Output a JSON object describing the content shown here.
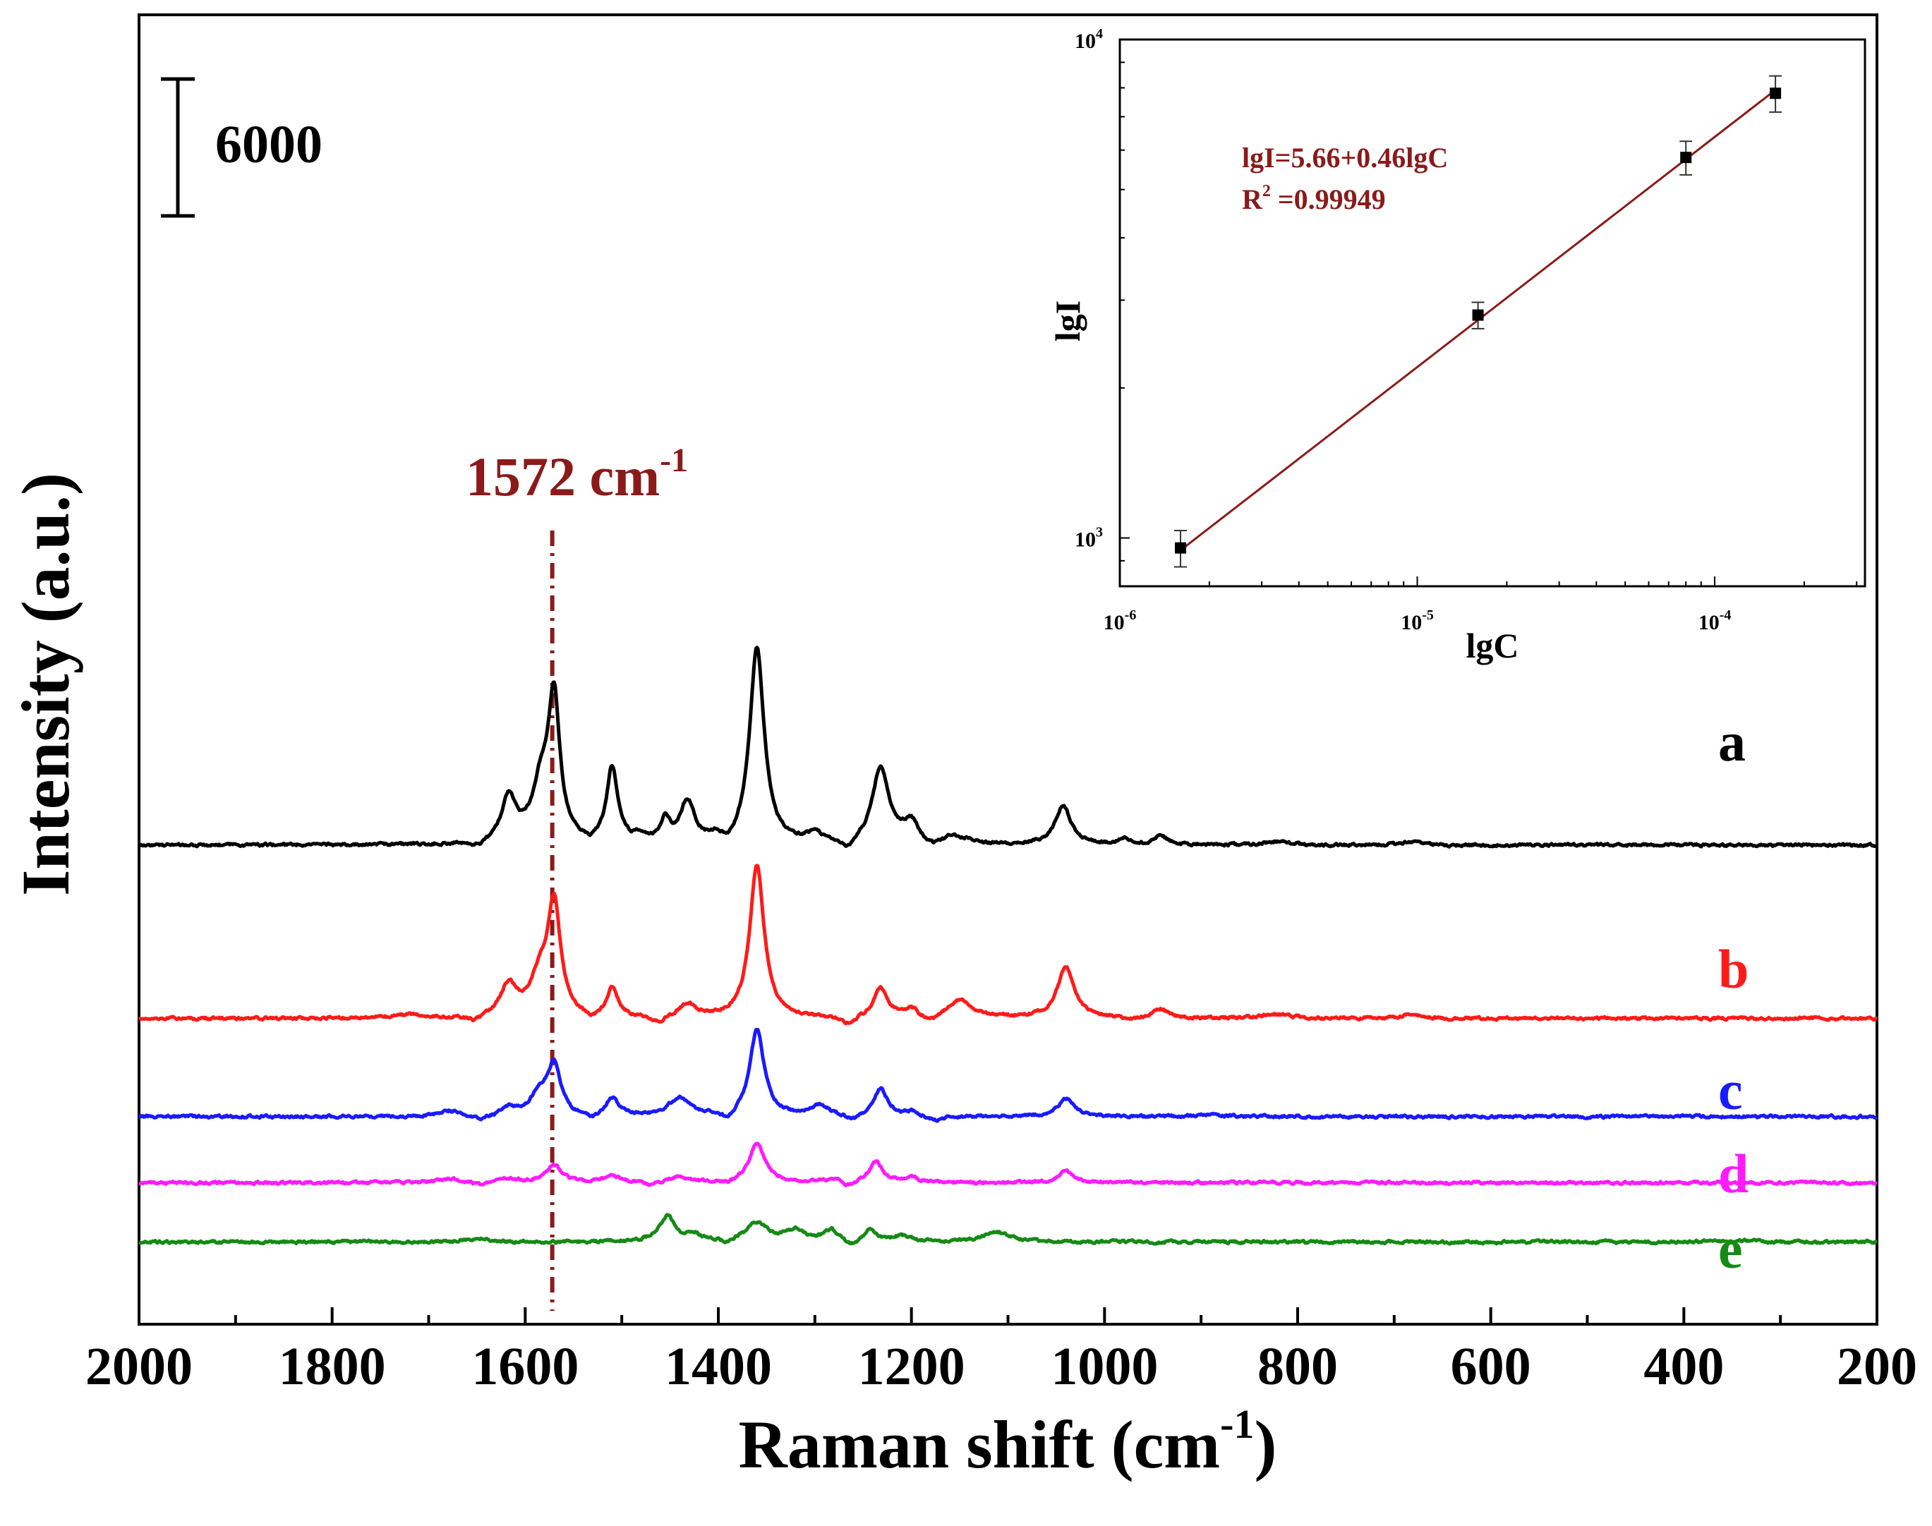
{
  "chart_data": [
    {
      "type": "line",
      "xlabel": "Raman shift (cm",
      "xlabel_sup": "-1",
      "xlabel_close": ")",
      "ylabel": "Intensity (a.u.)",
      "xlim": [
        2000,
        200
      ],
      "xticks": [
        2000,
        1800,
        1600,
        1400,
        1200,
        1000,
        800,
        600,
        400,
        200
      ],
      "xtick_labels": [
        "2000",
        "1800",
        "1600",
        "1400",
        "1200",
        "1000",
        "800",
        "600",
        "400",
        "200"
      ],
      "yaxis_ticks": false,
      "scale_bar_label": "6000",
      "scale_bar_value": 6000,
      "marker_line": {
        "x": 1572,
        "label": "1572 cm",
        "label_sup": "-1",
        "color": "#8b1a1a"
      },
      "peak_positions": [
        1617,
        1572,
        1508,
        1453,
        1432,
        1359,
        1300,
        1232,
        1200,
        1158,
        1040,
        980,
        940
      ],
      "series": [
        {
          "name": "a",
          "color": "#000000",
          "offset": 21000,
          "peaks": [
            [
              1617,
              2000,
              9
            ],
            [
              1583,
              2500,
              12
            ],
            [
              1570,
              5900,
              7
            ],
            [
              1510,
              3300,
              7
            ],
            [
              1482,
              250,
              6
            ],
            [
              1455,
              1000,
              6
            ],
            [
              1432,
              1800,
              9
            ],
            [
              1402,
              200,
              6
            ],
            [
              1360,
              8600,
              9
            ],
            [
              1300,
              400,
              10
            ],
            [
              1232,
              3300,
              11
            ],
            [
              1200,
              900,
              10
            ],
            [
              1158,
              350,
              8
            ],
            [
              1140,
              200,
              8
            ],
            [
              1043,
              1700,
              10
            ],
            [
              980,
              250,
              6
            ],
            [
              942,
              400,
              8
            ],
            [
              822,
              150,
              12
            ],
            [
              682,
              150,
              10
            ]
          ],
          "dips": [
            [
              1648,
              -250,
              10
            ],
            [
              1532,
              -200,
              8
            ],
            [
              1388,
              -300,
              8
            ],
            [
              1265,
              -450,
              10
            ],
            [
              1180,
              -250,
              10
            ]
          ]
        },
        {
          "name": "b",
          "color": "#ff1a1a",
          "offset": 13400,
          "peaks": [
            [
              1720,
              150,
              20
            ],
            [
              1617,
              1400,
              10
            ],
            [
              1585,
              1600,
              12
            ],
            [
              1570,
              4800,
              8
            ],
            [
              1510,
              1300,
              7
            ],
            [
              1432,
              600,
              10
            ],
            [
              1360,
              6700,
              9
            ],
            [
              1232,
              1300,
              9
            ],
            [
              1200,
              350,
              8
            ],
            [
              1150,
              800,
              16
            ],
            [
              1040,
              2200,
              11
            ],
            [
              942,
              400,
              9
            ],
            [
              822,
              200,
              14
            ],
            [
              682,
              200,
              9
            ]
          ],
          "dips": [
            [
              1652,
              -250,
              10
            ],
            [
              1530,
              -250,
              10
            ],
            [
              1463,
              -300,
              10
            ],
            [
              1265,
              -350,
              10
            ],
            [
              1180,
              -300,
              10
            ],
            [
              975,
              -150,
              8
            ]
          ]
        },
        {
          "name": "c",
          "color": "#1a1aff",
          "offset": 9100,
          "peaks": [
            [
              1680,
              250,
              12
            ],
            [
              1617,
              350,
              9
            ],
            [
              1585,
              900,
              12
            ],
            [
              1570,
              2100,
              8
            ],
            [
              1510,
              800,
              8
            ],
            [
              1440,
              800,
              14
            ],
            [
              1360,
              3800,
              9
            ],
            [
              1295,
              450,
              12
            ],
            [
              1232,
              1200,
              9
            ],
            [
              1200,
              200,
              8
            ],
            [
              1040,
              800,
              10
            ],
            [
              890,
              100,
              10
            ]
          ],
          "dips": [
            [
              1645,
              -200,
              9
            ],
            [
              1530,
              -250,
              9
            ],
            [
              1390,
              -350,
              8
            ],
            [
              1260,
              -250,
              10
            ],
            [
              1175,
              -200,
              10
            ]
          ]
        },
        {
          "name": "d",
          "color": "#ff1aff",
          "offset": 6200,
          "peaks": [
            [
              1680,
              200,
              12
            ],
            [
              1617,
              200,
              9
            ],
            [
              1570,
              800,
              10
            ],
            [
              1510,
              350,
              8
            ],
            [
              1440,
              250,
              12
            ],
            [
              1360,
              1700,
              10
            ],
            [
              1280,
              200,
              10
            ],
            [
              1237,
              900,
              9
            ],
            [
              1200,
              200,
              8
            ],
            [
              1040,
              500,
              10
            ]
          ],
          "dips": [
            [
              1645,
              -150,
              9
            ],
            [
              1470,
              -150,
              8
            ],
            [
              1390,
              -100,
              8
            ],
            [
              1265,
              -250,
              9
            ]
          ]
        },
        {
          "name": "e",
          "color": "#158a15",
          "offset": 3600,
          "peaks": [
            [
              1650,
              150,
              14
            ],
            [
              1453,
              1100,
              10
            ],
            [
              1425,
              300,
              10
            ],
            [
              1360,
              800,
              14
            ],
            [
              1320,
              500,
              12
            ],
            [
              1283,
              500,
              9
            ],
            [
              1243,
              500,
              8
            ],
            [
              1210,
              250,
              10
            ],
            [
              1112,
              450,
              16
            ],
            [
              370,
              100,
              10
            ],
            [
              330,
              100,
              8
            ]
          ],
          "dips": [
            [
              1390,
              -150,
              8
            ],
            [
              1262,
              -250,
              8
            ]
          ]
        }
      ]
    },
    {
      "type": "scatter",
      "inset": true,
      "xlabel": "lgC",
      "ylabel": "lgI",
      "xscale": "log",
      "yscale": "log",
      "xlim": [
        1e-06,
        0.00032
      ],
      "ylim": [
        800,
        10000
      ],
      "xtick_labels": [
        {
          "base": "10",
          "exp": "-6"
        },
        {
          "base": "10",
          "exp": "-5"
        },
        {
          "base": "10",
          "exp": "-4"
        }
      ],
      "xtick_values": [
        1e-06,
        1e-05,
        0.0001
      ],
      "ytick_labels": [
        {
          "base": "10",
          "exp": "3"
        },
        {
          "base": "10",
          "exp": "4"
        }
      ],
      "ytick_values": [
        1000,
        10000
      ],
      "points": [
        {
          "x": 1.6e-06,
          "y": 955,
          "err": 80
        },
        {
          "x": 1.6e-05,
          "y": 2800,
          "err": 170
        },
        {
          "x": 8e-05,
          "y": 5800,
          "err": 450
        },
        {
          "x": 0.00016,
          "y": 7800,
          "err": 650
        }
      ],
      "fit_line": {
        "x": [
          1.6e-06,
          0.00016
        ],
        "y": [
          945,
          7920
        ],
        "color": "#8b1a1a"
      },
      "equation": "lgI=5.66+0.46lgC",
      "r2_prefix": "R",
      "r2_sup": "2",
      "r2_value": " =0.99949",
      "annotation_color": "#8b1a1a"
    }
  ]
}
